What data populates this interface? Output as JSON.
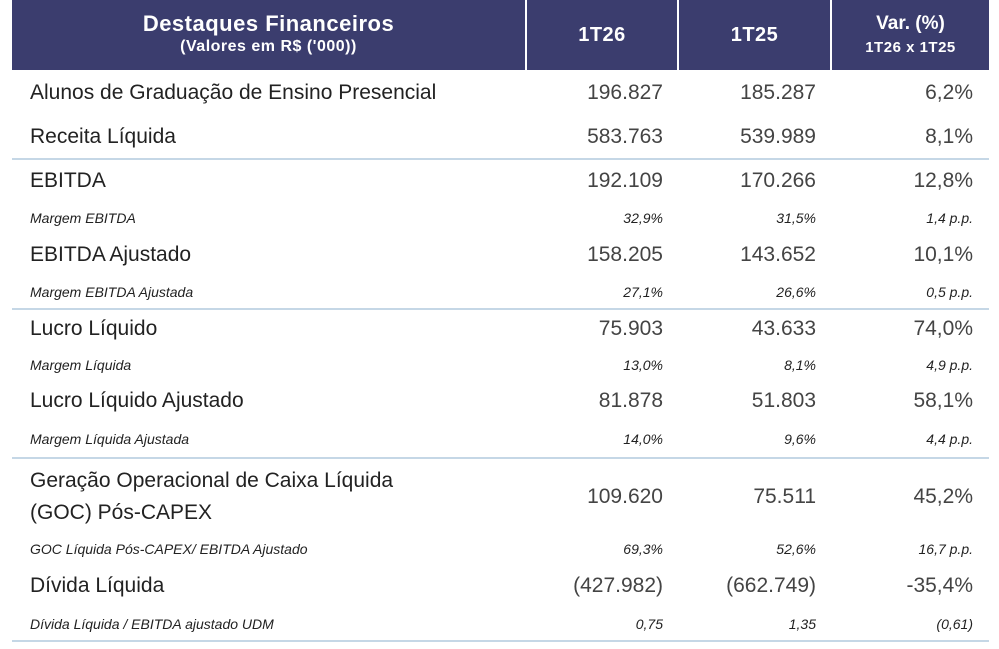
{
  "header": {
    "title": "Destaques Financeiros",
    "subtitle": "(Valores em R$ ('000))",
    "col1": "1T26",
    "col2": "1T25",
    "col3_line1": "Var. (%)",
    "col3_line2": "1T26 x 1T25"
  },
  "rows": [
    {
      "label": "Alunos de Graduação de Ensino Presencial",
      "v1": "196.827",
      "v2": "185.287",
      "v3": "6,2%"
    },
    {
      "label": "Receita Líquida",
      "v1": "583.763",
      "v2": "539.989",
      "v3": "8,1%"
    },
    {
      "label": "EBITDA",
      "v1": "192.109",
      "v2": "170.266",
      "v3": "12,8%"
    },
    {
      "label": "Margem EBITDA",
      "v1": "32,9%",
      "v2": "31,5%",
      "v3": "1,4 p.p."
    },
    {
      "label": "EBITDA Ajustado",
      "v1": "158.205",
      "v2": "143.652",
      "v3": "10,1%"
    },
    {
      "label": "Margem EBITDA Ajustada",
      "v1": "27,1%",
      "v2": "26,6%",
      "v3": "0,5 p.p."
    },
    {
      "label": "Lucro Líquido",
      "v1": "75.903",
      "v2": "43.633",
      "v3": "74,0%"
    },
    {
      "label": "Margem Líquida",
      "v1": "13,0%",
      "v2": "8,1%",
      "v3": "4,9 p.p."
    },
    {
      "label": "Lucro Líquido Ajustado",
      "v1": "81.878",
      "v2": "51.803",
      "v3": "58,1%"
    },
    {
      "label": "Margem Líquida Ajustada",
      "v1": "14,0%",
      "v2": "9,6%",
      "v3": "4,4 p.p."
    },
    {
      "label_line1": "Geração Operacional de Caixa Líquida",
      "label_line2": "(GOC) Pós-CAPEX",
      "v1": "109.620",
      "v2": "75.511",
      "v3": "45,2%"
    },
    {
      "label": "GOC Líquida Pós-CAPEX/ EBITDA Ajustado",
      "v1": "69,3%",
      "v2": "52,6%",
      "v3": "16,7 p.p."
    },
    {
      "label": "Dívida Líquida",
      "v1": "(427.982)",
      "v2": "(662.749)",
      "v3": "-35,4%"
    },
    {
      "label": "Dívida Líquida / EBITDA ajustado UDM",
      "v1": "0,75",
      "v2": "1,35",
      "v3": "(0,61)"
    }
  ],
  "colors": {
    "header_bg": "#3b3d6e",
    "separator": "#c5d7e6"
  }
}
